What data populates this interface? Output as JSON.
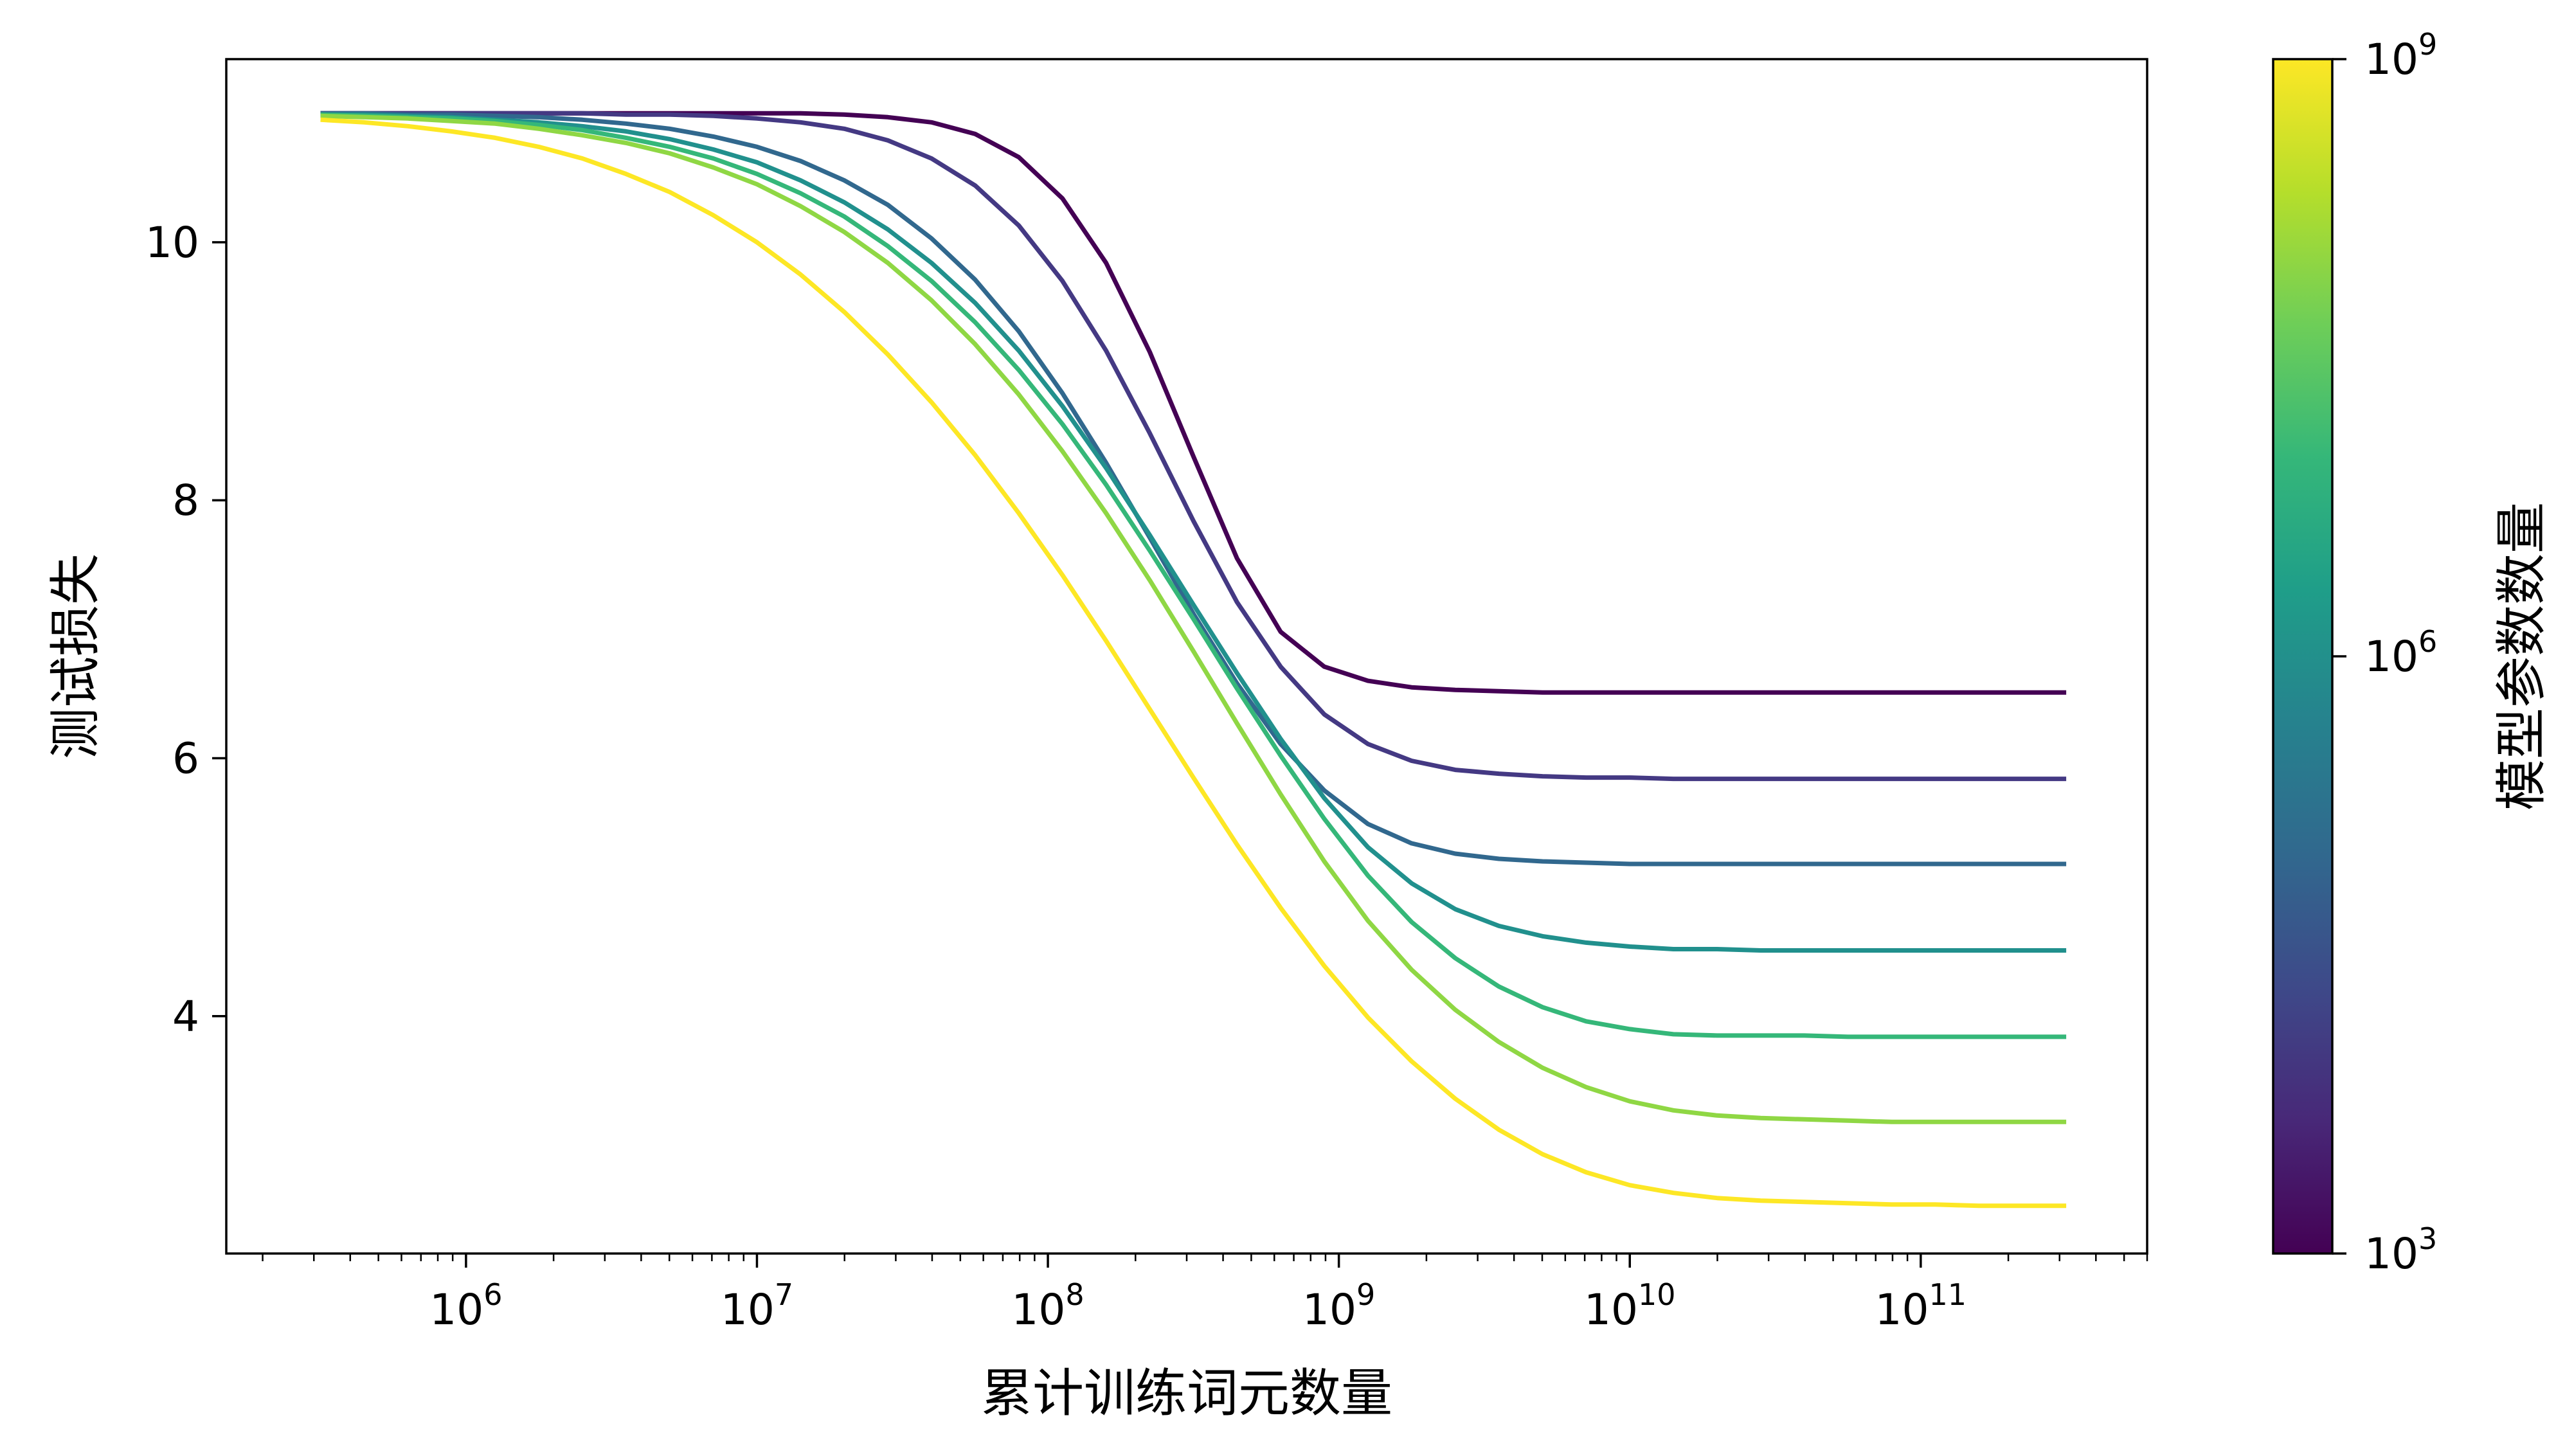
{
  "chart_data": {
    "type": "line",
    "xscale": "log",
    "xlim": [
      150000,
      600000000000
    ],
    "ylim": [
      2.16,
      11.42
    ],
    "xlabel": "累计训练词元数量",
    "ylabel": "测试损失",
    "x_ticks": [
      {
        "base": "10",
        "exp": "6",
        "value": 1000000
      },
      {
        "base": "10",
        "exp": "7",
        "value": 10000000
      },
      {
        "base": "10",
        "exp": "8",
        "value": 100000000
      },
      {
        "base": "10",
        "exp": "9",
        "value": 1000000000
      },
      {
        "base": "10",
        "exp": "10",
        "value": 10000000000
      },
      {
        "base": "10",
        "exp": "11",
        "value": 100000000000
      }
    ],
    "y_ticks": [
      {
        "label": "4",
        "value": 4
      },
      {
        "label": "6",
        "value": 6
      },
      {
        "label": "8",
        "value": 8
      },
      {
        "label": "10",
        "value": 10
      }
    ],
    "grid": false,
    "x_log10": [
      5.5,
      5.65,
      5.8,
      5.95,
      6.1,
      6.25,
      6.4,
      6.55,
      6.7,
      6.85,
      7.0,
      7.15,
      7.3,
      7.45,
      7.6,
      7.75,
      7.9,
      8.05,
      8.2,
      8.35,
      8.5,
      8.65,
      8.8,
      8.95,
      9.1,
      9.25,
      9.4,
      9.55,
      9.7,
      9.85,
      10.0,
      10.15,
      10.3,
      10.45,
      10.6,
      10.75,
      10.9,
      11.05,
      11.2,
      11.35,
      11.5
    ],
    "series": [
      {
        "color": "#440154",
        "values": [
          11.0,
          11.0,
          11.0,
          11.0,
          11.0,
          11.0,
          11.0,
          11.0,
          11.0,
          11.0,
          11.0,
          11.0,
          10.99,
          10.97,
          10.93,
          10.84,
          10.66,
          10.34,
          9.84,
          9.15,
          8.34,
          7.55,
          6.98,
          6.71,
          6.6,
          6.55,
          6.53,
          6.52,
          6.51,
          6.51,
          6.51,
          6.51,
          6.51,
          6.51,
          6.51,
          6.51,
          6.51,
          6.51,
          6.51,
          6.51,
          6.51
        ]
      },
      {
        "color": "#443983",
        "values": [
          11.0,
          11.0,
          11.0,
          11.0,
          11.0,
          11.0,
          11.0,
          10.99,
          10.99,
          10.98,
          10.96,
          10.93,
          10.88,
          10.79,
          10.65,
          10.44,
          10.13,
          9.7,
          9.16,
          8.52,
          7.84,
          7.21,
          6.71,
          6.34,
          6.11,
          5.98,
          5.91,
          5.88,
          5.86,
          5.85,
          5.85,
          5.84,
          5.84,
          5.84,
          5.84,
          5.84,
          5.84,
          5.84,
          5.84,
          5.84,
          5.84
        ]
      },
      {
        "color": "#31688e",
        "values": [
          11.0,
          11.0,
          10.99,
          10.99,
          10.98,
          10.97,
          10.95,
          10.92,
          10.88,
          10.82,
          10.74,
          10.63,
          10.48,
          10.29,
          10.03,
          9.71,
          9.31,
          8.83,
          8.29,
          7.71,
          7.12,
          6.58,
          6.11,
          5.75,
          5.49,
          5.34,
          5.26,
          5.22,
          5.2,
          5.19,
          5.18,
          5.18,
          5.18,
          5.18,
          5.18,
          5.18,
          5.18,
          5.18,
          5.18,
          5.18,
          5.18
        ]
      },
      {
        "color": "#21908d",
        "values": [
          10.99,
          10.99,
          10.98,
          10.97,
          10.95,
          10.93,
          10.9,
          10.86,
          10.8,
          10.72,
          10.62,
          10.48,
          10.31,
          10.1,
          9.84,
          9.53,
          9.16,
          8.73,
          8.25,
          7.73,
          7.19,
          6.66,
          6.15,
          5.69,
          5.31,
          5.03,
          4.83,
          4.7,
          4.62,
          4.57,
          4.54,
          4.52,
          4.52,
          4.51,
          4.51,
          4.51,
          4.51,
          4.51,
          4.51,
          4.51,
          4.51
        ]
      },
      {
        "color": "#35b779",
        "values": [
          10.99,
          10.98,
          10.97,
          10.96,
          10.94,
          10.91,
          10.87,
          10.81,
          10.74,
          10.65,
          10.53,
          10.38,
          10.2,
          9.97,
          9.7,
          9.38,
          9.01,
          8.59,
          8.12,
          7.61,
          7.08,
          6.54,
          6.02,
          5.53,
          5.09,
          4.73,
          4.45,
          4.23,
          4.07,
          3.96,
          3.9,
          3.86,
          3.85,
          3.85,
          3.85,
          3.84,
          3.84,
          3.84,
          3.84,
          3.84,
          3.84
        ]
      },
      {
        "color": "#8fd744",
        "values": [
          10.98,
          10.97,
          10.96,
          10.94,
          10.92,
          10.88,
          10.83,
          10.77,
          10.69,
          10.58,
          10.45,
          10.28,
          10.08,
          9.84,
          9.55,
          9.21,
          8.82,
          8.38,
          7.9,
          7.38,
          6.83,
          6.27,
          5.72,
          5.2,
          4.74,
          4.36,
          4.05,
          3.8,
          3.6,
          3.45,
          3.34,
          3.27,
          3.23,
          3.21,
          3.2,
          3.19,
          3.18,
          3.18,
          3.18,
          3.18,
          3.18
        ]
      },
      {
        "color": "#fde725",
        "values": [
          10.95,
          10.93,
          10.9,
          10.86,
          10.81,
          10.74,
          10.65,
          10.53,
          10.39,
          10.21,
          10.0,
          9.75,
          9.46,
          9.13,
          8.76,
          8.35,
          7.9,
          7.42,
          6.91,
          6.38,
          5.85,
          5.33,
          4.84,
          4.39,
          3.99,
          3.65,
          3.36,
          3.12,
          2.93,
          2.79,
          2.69,
          2.63,
          2.59,
          2.57,
          2.56,
          2.55,
          2.54,
          2.54,
          2.53,
          2.53,
          2.53
        ]
      }
    ],
    "colorbar": {
      "label": "模型参数数量",
      "scale": "log",
      "range": [
        1000,
        1000000000
      ],
      "colormap": "viridis",
      "stops": [
        "#440154",
        "#482878",
        "#3e4989",
        "#31688e",
        "#26828e",
        "#1f9e89",
        "#35b779",
        "#6ece58",
        "#b5de2b",
        "#fde725"
      ],
      "ticks": [
        {
          "base": "10",
          "exp": "3",
          "value": 1000
        },
        {
          "base": "10",
          "exp": "6",
          "value": 1000000
        },
        {
          "base": "10",
          "exp": "9",
          "value": 1000000000
        }
      ]
    }
  }
}
